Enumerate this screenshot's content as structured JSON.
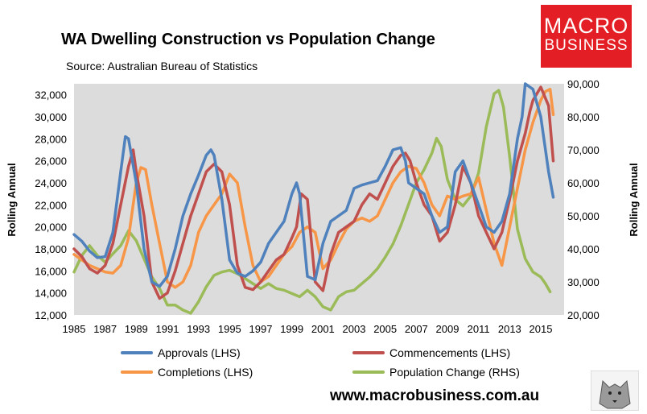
{
  "header": {
    "title": "WA Dwelling Construction vs Population Change",
    "source": "Source: Australian Bureau of Statistics"
  },
  "brand": {
    "line1": "MACRO",
    "line2": "BUSINESS",
    "url": "www.macrobusiness.com.au",
    "color": "#e31e24"
  },
  "chart_data": {
    "type": "line",
    "title": "WA Dwelling Construction vs Population Change",
    "x_ticks": [
      "1985",
      "1987",
      "1989",
      "1991",
      "1993",
      "1995",
      "1997",
      "1999",
      "2001",
      "2003",
      "2005",
      "2007",
      "2009",
      "2011",
      "2013",
      "2015"
    ],
    "xlim": [
      1985,
      2016.5
    ],
    "y_left": {
      "label": "Rolling Annual",
      "ylim": [
        12000,
        33000
      ],
      "ticks": [
        "12,000",
        "14,000",
        "16,000",
        "18,000",
        "20,000",
        "22,000",
        "24,000",
        "26,000",
        "28,000",
        "30,000",
        "32,000"
      ]
    },
    "y_right": {
      "label": "Rolling Annual",
      "ylim": [
        20000,
        90000
      ],
      "ticks": [
        "20,000",
        "30,000",
        "40,000",
        "50,000",
        "60,000",
        "70,000",
        "80,000",
        "90,000"
      ]
    },
    "grid": false,
    "legend_position": "bottom",
    "series": [
      {
        "name": "Approvals (LHS)",
        "axis": "left",
        "color": "#4f81bd",
        "x": [
          1985,
          1985.5,
          1986,
          1986.5,
          1987,
          1987.5,
          1988,
          1988.3,
          1988.5,
          1989,
          1989.5,
          1990,
          1990.5,
          1991,
          1991.5,
          1992,
          1992.5,
          1993,
          1993.5,
          1993.8,
          1994,
          1994.5,
          1995,
          1995.5,
          1996,
          1996.5,
          1997,
          1997.5,
          1998,
          1998.5,
          1999,
          1999.3,
          1999.5,
          2000,
          2000.5,
          2001,
          2001.5,
          2002,
          2002.5,
          2003,
          2003.5,
          2004,
          2004.5,
          2005,
          2005.5,
          2006,
          2006.3,
          2006.5,
          2007,
          2007.5,
          2008,
          2008.5,
          2009,
          2009.5,
          2010,
          2010.5,
          2011,
          2011.5,
          2012,
          2012.5,
          2013,
          2013.5,
          2013.8,
          2014,
          2014.5,
          2015,
          2015.5,
          2015.8
        ],
        "values": [
          19300,
          18700,
          17800,
          17200,
          17300,
          19500,
          25000,
          28200,
          28000,
          24000,
          18000,
          15000,
          14600,
          15500,
          18000,
          21000,
          23000,
          24700,
          26500,
          27000,
          26500,
          22500,
          17000,
          15800,
          15500,
          16000,
          16800,
          18500,
          19500,
          20500,
          23000,
          24000,
          23000,
          15500,
          15200,
          18500,
          20500,
          21000,
          21500,
          23500,
          23800,
          24000,
          24200,
          25500,
          27000,
          27200,
          26000,
          24000,
          23500,
          23000,
          21000,
          19500,
          20000,
          25000,
          26000,
          24000,
          22000,
          20000,
          19500,
          20500,
          23000,
          28000,
          30000,
          33000,
          32500,
          30000,
          25000,
          22700
        ]
      },
      {
        "name": "Commencements (LHS)",
        "axis": "left",
        "color": "#c0504d",
        "x": [
          1985,
          1985.5,
          1986,
          1986.5,
          1987,
          1987.5,
          1988,
          1988.5,
          1988.8,
          1989,
          1989.5,
          1990,
          1990.5,
          1991,
          1991.5,
          1992,
          1992.5,
          1993,
          1993.5,
          1994,
          1994.5,
          1995,
          1995.5,
          1996,
          1996.5,
          1997,
          1997.5,
          1998,
          1998.5,
          1999,
          1999.3,
          1999.6,
          2000,
          2000.5,
          2001,
          2001.5,
          2002,
          2002.5,
          2003,
          2003.5,
          2004,
          2004.5,
          2005,
          2005.5,
          2006,
          2006.3,
          2006.6,
          2007,
          2007.5,
          2008,
          2008.5,
          2009,
          2009.5,
          2010,
          2010.5,
          2011,
          2011.5,
          2012,
          2012.5,
          2013,
          2013.5,
          2014,
          2014.3,
          2014.5,
          2015,
          2015.5,
          2015.8
        ],
        "values": [
          18000,
          17300,
          16200,
          15800,
          16500,
          18500,
          22000,
          25500,
          27000,
          25000,
          21000,
          15000,
          13500,
          14000,
          16000,
          18500,
          21000,
          23000,
          25000,
          25700,
          25000,
          22000,
          16500,
          14500,
          14300,
          15000,
          16000,
          17000,
          17500,
          19000,
          20000,
          23000,
          22500,
          15000,
          14200,
          17500,
          19500,
          20000,
          20500,
          22000,
          23000,
          22500,
          24000,
          25500,
          26500,
          26700,
          26000,
          24000,
          22000,
          21000,
          18700,
          19500,
          22000,
          25500,
          24000,
          21000,
          19500,
          18000,
          19500,
          22500,
          26000,
          28500,
          30500,
          31500,
          32700,
          31000,
          26000
        ]
      },
      {
        "name": "Completions (LHS)",
        "axis": "left",
        "color": "#f79646",
        "x": [
          1985,
          1985.5,
          1986,
          1986.5,
          1987,
          1987.5,
          1988,
          1988.5,
          1989,
          1989.3,
          1989.6,
          1990,
          1990.5,
          1991,
          1991.5,
          1992,
          1992.5,
          1993,
          1993.5,
          1994,
          1994.5,
          1995,
          1995.5,
          1996,
          1996.5,
          1997,
          1997.5,
          1998,
          1998.5,
          1999,
          1999.5,
          2000,
          2000.5,
          2001,
          2001.5,
          2002,
          2002.5,
          2003,
          2003.5,
          2004,
          2004.5,
          2005,
          2005.5,
          2006,
          2006.5,
          2007,
          2007.5,
          2008,
          2008.5,
          2009,
          2009.5,
          2010,
          2010.5,
          2011,
          2011.5,
          2012,
          2012.5,
          2013,
          2013.5,
          2014,
          2014.5,
          2015,
          2015.3,
          2015.6,
          2015.8
        ],
        "values": [
          17500,
          17000,
          16500,
          16200,
          15900,
          15800,
          16500,
          19000,
          24000,
          25400,
          25200,
          22000,
          18500,
          15000,
          14500,
          15000,
          16500,
          19500,
          21000,
          22000,
          23000,
          24800,
          24000,
          20000,
          16500,
          15000,
          15500,
          16500,
          17500,
          18200,
          19500,
          20000,
          19500,
          16200,
          17000,
          18500,
          19800,
          20500,
          20800,
          20500,
          21000,
          22500,
          24000,
          25000,
          25500,
          25300,
          24000,
          22000,
          21000,
          22800,
          22500,
          22800,
          23000,
          24500,
          21500,
          18500,
          16500,
          20000,
          23500,
          27000,
          29500,
          31500,
          32300,
          32500,
          30200
        ]
      },
      {
        "name": "Population Change (RHS)",
        "axis": "right",
        "color": "#9bbb59",
        "x": [
          1985,
          1985.5,
          1986,
          1986.5,
          1987,
          1987.5,
          1988,
          1988.5,
          1989,
          1989.5,
          1990,
          1990.5,
          1991,
          1991.5,
          1992,
          1992.5,
          1993,
          1993.5,
          1994,
          1994.5,
          1995,
          1995.5,
          1996,
          1996.5,
          1997,
          1997.5,
          1998,
          1998.5,
          1999,
          1999.5,
          2000,
          2000.5,
          2001,
          2001.5,
          2002,
          2002.5,
          2003,
          2003.5,
          2004,
          2004.5,
          2005,
          2005.5,
          2006,
          2006.5,
          2007,
          2007.5,
          2008,
          2008.3,
          2008.6,
          2009,
          2009.5,
          2010,
          2010.5,
          2011,
          2011.5,
          2012,
          2012.3,
          2012.6,
          2013,
          2013.5,
          2014,
          2014.5,
          2015,
          2015.3,
          2015.6
        ],
        "values": [
          33000,
          38000,
          41000,
          38000,
          36000,
          38500,
          41000,
          45500,
          42500,
          37000,
          31500,
          28000,
          23000,
          23000,
          21500,
          20500,
          24000,
          28500,
          32000,
          33000,
          33500,
          32500,
          31000,
          29500,
          28000,
          29500,
          28000,
          27500,
          26500,
          25500,
          27500,
          25500,
          22500,
          21500,
          25500,
          27000,
          27500,
          29500,
          31500,
          34000,
          37500,
          41500,
          47000,
          53500,
          60000,
          64000,
          69000,
          73500,
          71000,
          61000,
          55000,
          53000,
          56000,
          63000,
          77000,
          87000,
          88000,
          83000,
          68000,
          46000,
          37000,
          33000,
          31500,
          29500,
          27000
        ]
      }
    ]
  }
}
